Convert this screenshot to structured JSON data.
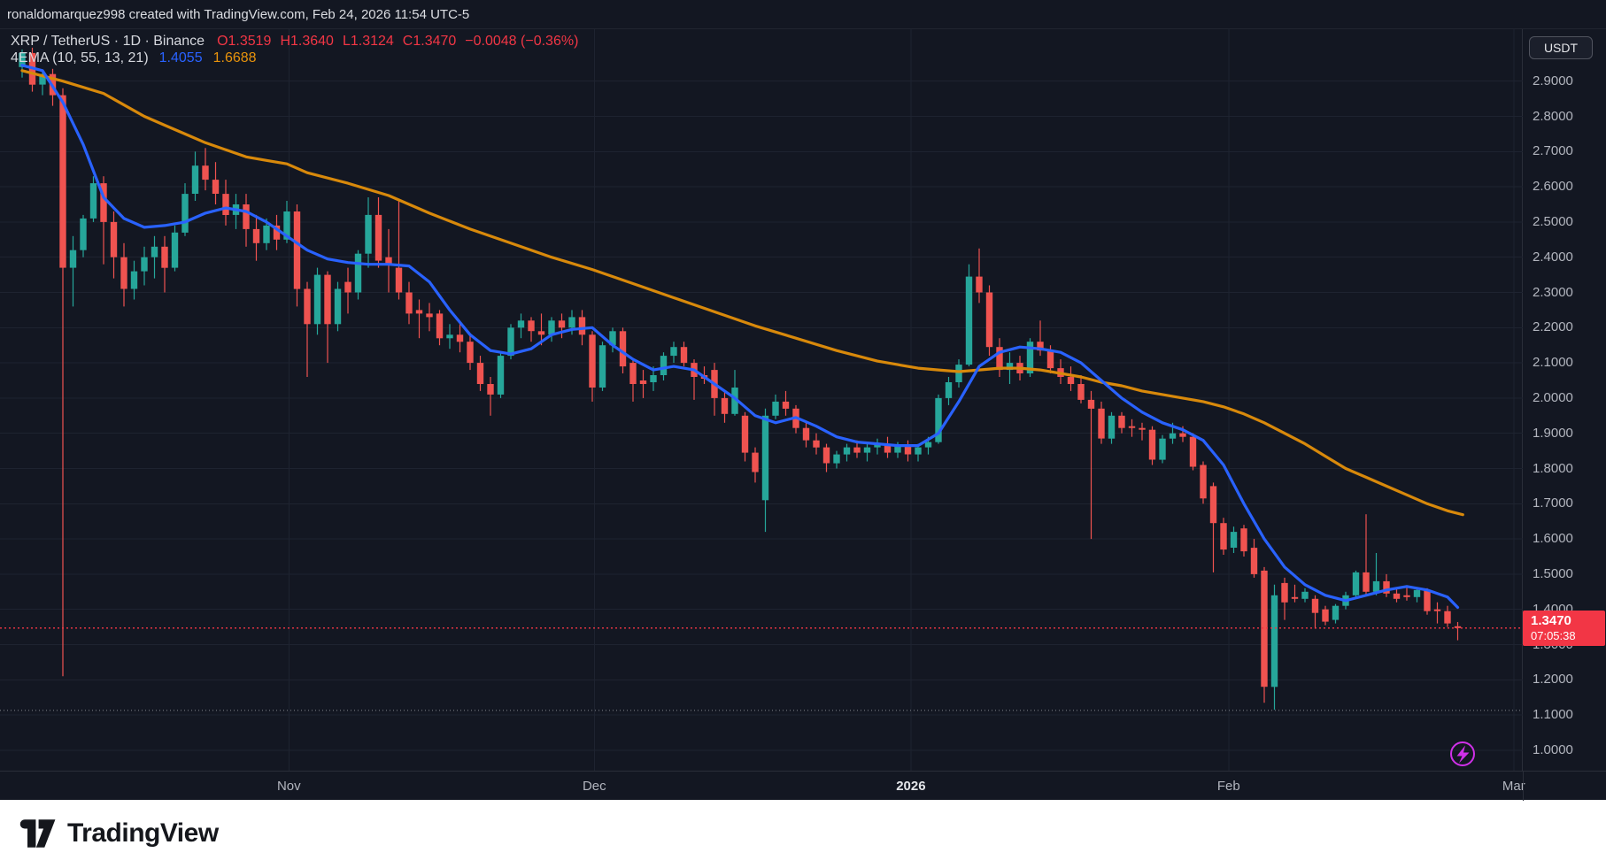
{
  "attribution": {
    "text": "ronaldomarquez998 created with TradingView.com, Feb 24, 2026 11:54 UTC-5"
  },
  "legend": {
    "symbol": "XRP / TetherUS · 1D · Binance",
    "open": "O1.3519",
    "high": "H1.3640",
    "low": "L1.3124",
    "close": "C1.3470",
    "change": "−0.0048 (−0.36%)",
    "indicator_name": "4EMA (10, 55, 13, 21)",
    "ema_fast_value": "1.4055",
    "ema_slow_value": "1.6688"
  },
  "price_axis": {
    "currency": "USDT",
    "last_price": "1.3470",
    "countdown": "07:05:38"
  },
  "footer": {
    "brand": "TradingView"
  },
  "colors": {
    "background": "#131722",
    "grid": "#1e2330",
    "up": "#26a69a",
    "down": "#ef5350",
    "legend_red": "#f23645",
    "ema_fast": "#2962ff",
    "ema_slow": "#d8890b",
    "price_line": "#f23645",
    "level_line": "#85888f",
    "boost_purple": "#cf30e8",
    "axis_text": "#b2b5be"
  },
  "chart_data": {
    "type": "candlestick",
    "title": "XRP / TetherUS · 1D · Binance",
    "exchange": "Binance",
    "timeframe": "1D",
    "ylim": [
      0.94,
      2.965
    ],
    "y_ticks": [
      2.9,
      2.8,
      2.7,
      2.6,
      2.5,
      2.4,
      2.3,
      2.2,
      2.1,
      2.0,
      1.9,
      1.8,
      1.7,
      1.6,
      1.5,
      1.4,
      1.3,
      1.2,
      1.1,
      1.0
    ],
    "months": [
      {
        "label": "Nov",
        "i": 26.2
      },
      {
        "label": "Dec",
        "i": 56.2
      },
      {
        "label": "2026",
        "i": 87.3,
        "bold": true
      },
      {
        "label": "Feb",
        "i": 118.5
      },
      {
        "label": "Mar",
        "i": 146.5
      }
    ],
    "price_line": {
      "value": 1.347
    },
    "level_line": {
      "value": 1.113
    },
    "candles": [
      [
        2.94,
        2.99,
        2.91,
        2.98
      ],
      [
        2.98,
        2.995,
        2.87,
        2.89
      ],
      [
        2.89,
        2.93,
        2.86,
        2.92
      ],
      [
        2.92,
        2.935,
        2.83,
        2.86
      ],
      [
        2.86,
        2.88,
        1.21,
        2.37
      ],
      [
        2.37,
        2.46,
        2.26,
        2.42
      ],
      [
        2.42,
        2.52,
        2.4,
        2.51
      ],
      [
        2.51,
        2.63,
        2.5,
        2.61
      ],
      [
        2.61,
        2.63,
        2.38,
        2.5
      ],
      [
        2.5,
        2.53,
        2.34,
        2.4
      ],
      [
        2.4,
        2.44,
        2.26,
        2.31
      ],
      [
        2.31,
        2.39,
        2.28,
        2.36
      ],
      [
        2.36,
        2.43,
        2.32,
        2.4
      ],
      [
        2.4,
        2.46,
        2.34,
        2.43
      ],
      [
        2.43,
        2.46,
        2.3,
        2.37
      ],
      [
        2.37,
        2.49,
        2.36,
        2.47
      ],
      [
        2.47,
        2.61,
        2.46,
        2.58
      ],
      [
        2.58,
        2.7,
        2.56,
        2.66
      ],
      [
        2.66,
        2.71,
        2.59,
        2.62
      ],
      [
        2.62,
        2.67,
        2.55,
        2.58
      ],
      [
        2.58,
        2.62,
        2.49,
        2.52
      ],
      [
        2.52,
        2.58,
        2.48,
        2.55
      ],
      [
        2.55,
        2.58,
        2.43,
        2.48
      ],
      [
        2.48,
        2.52,
        2.39,
        2.44
      ],
      [
        2.44,
        2.51,
        2.42,
        2.49
      ],
      [
        2.49,
        2.52,
        2.42,
        2.45
      ],
      [
        2.45,
        2.56,
        2.44,
        2.53
      ],
      [
        2.53,
        2.55,
        2.26,
        2.31
      ],
      [
        2.31,
        2.33,
        2.06,
        2.21
      ],
      [
        2.21,
        2.37,
        2.18,
        2.35
      ],
      [
        2.35,
        2.36,
        2.1,
        2.21
      ],
      [
        2.21,
        2.33,
        2.19,
        2.31
      ],
      [
        2.33,
        2.37,
        2.24,
        2.3
      ],
      [
        2.3,
        2.42,
        2.28,
        2.41
      ],
      [
        2.41,
        2.57,
        2.37,
        2.52
      ],
      [
        2.52,
        2.57,
        2.37,
        2.39
      ],
      [
        2.4,
        2.48,
        2.3,
        2.38
      ],
      [
        2.37,
        2.56,
        2.28,
        2.3
      ],
      [
        2.3,
        2.33,
        2.21,
        2.24
      ],
      [
        2.25,
        2.28,
        2.17,
        2.24
      ],
      [
        2.24,
        2.27,
        2.19,
        2.23
      ],
      [
        2.24,
        2.25,
        2.15,
        2.17
      ],
      [
        2.17,
        2.21,
        2.14,
        2.18
      ],
      [
        2.18,
        2.21,
        2.13,
        2.16
      ],
      [
        2.16,
        2.18,
        2.08,
        2.1
      ],
      [
        2.1,
        2.12,
        2.02,
        2.04
      ],
      [
        2.04,
        2.06,
        1.95,
        2.01
      ],
      [
        2.01,
        2.13,
        2.0,
        2.12
      ],
      [
        2.12,
        2.21,
        2.11,
        2.2
      ],
      [
        2.2,
        2.24,
        2.17,
        2.22
      ],
      [
        2.22,
        2.23,
        2.16,
        2.19
      ],
      [
        2.19,
        2.24,
        2.15,
        2.18
      ],
      [
        2.18,
        2.23,
        2.16,
        2.22
      ],
      [
        2.22,
        2.24,
        2.17,
        2.2
      ],
      [
        2.2,
        2.25,
        2.18,
        2.23
      ],
      [
        2.23,
        2.25,
        2.15,
        2.18
      ],
      [
        2.18,
        2.19,
        1.99,
        2.03
      ],
      [
        2.03,
        2.16,
        2.02,
        2.15
      ],
      [
        2.15,
        2.2,
        2.13,
        2.19
      ],
      [
        2.19,
        2.2,
        2.07,
        2.09
      ],
      [
        2.1,
        2.11,
        1.99,
        2.04
      ],
      [
        2.05,
        2.08,
        2.0,
        2.04
      ],
      [
        2.045,
        2.09,
        2.02,
        2.065
      ],
      [
        2.065,
        2.13,
        2.05,
        2.12
      ],
      [
        2.12,
        2.16,
        2.1,
        2.145
      ],
      [
        2.145,
        2.16,
        2.09,
        2.1
      ],
      [
        2.1,
        2.11,
        1.995,
        2.06
      ],
      [
        2.065,
        2.09,
        2.04,
        2.055
      ],
      [
        2.08,
        2.1,
        1.95,
        2.0
      ],
      [
        2.0,
        2.02,
        1.93,
        1.955
      ],
      [
        1.955,
        2.08,
        1.95,
        2.03
      ],
      [
        1.95,
        1.96,
        1.82,
        1.845
      ],
      [
        1.845,
        1.86,
        1.76,
        1.79
      ],
      [
        1.71,
        1.97,
        1.62,
        1.95
      ],
      [
        1.95,
        2.01,
        1.94,
        1.99
      ],
      [
        1.99,
        2.02,
        1.95,
        1.97
      ],
      [
        1.97,
        1.98,
        1.9,
        1.915
      ],
      [
        1.915,
        1.93,
        1.86,
        1.88
      ],
      [
        1.88,
        1.9,
        1.84,
        1.86
      ],
      [
        1.86,
        1.87,
        1.79,
        1.815
      ],
      [
        1.815,
        1.85,
        1.8,
        1.84
      ],
      [
        1.84,
        1.87,
        1.82,
        1.86
      ],
      [
        1.86,
        1.88,
        1.83,
        1.845
      ],
      [
        1.845,
        1.87,
        1.82,
        1.86
      ],
      [
        1.86,
        1.885,
        1.84,
        1.87
      ],
      [
        1.87,
        1.89,
        1.83,
        1.845
      ],
      [
        1.845,
        1.875,
        1.83,
        1.865
      ],
      [
        1.865,
        1.88,
        1.82,
        1.84
      ],
      [
        1.84,
        1.87,
        1.82,
        1.86
      ],
      [
        1.86,
        1.89,
        1.84,
        1.875
      ],
      [
        1.875,
        2.01,
        1.87,
        2.0
      ],
      [
        2.0,
        2.06,
        1.98,
        2.045
      ],
      [
        2.045,
        2.11,
        2.03,
        2.095
      ],
      [
        2.095,
        2.38,
        2.09,
        2.345
      ],
      [
        2.345,
        2.425,
        2.27,
        2.3
      ],
      [
        2.3,
        2.32,
        2.12,
        2.145
      ],
      [
        2.145,
        2.17,
        2.06,
        2.08
      ],
      [
        2.08,
        2.13,
        2.04,
        2.1
      ],
      [
        2.1,
        2.12,
        2.05,
        2.07
      ],
      [
        2.07,
        2.17,
        2.06,
        2.16
      ],
      [
        2.16,
        2.22,
        2.12,
        2.135
      ],
      [
        2.135,
        2.15,
        2.07,
        2.085
      ],
      [
        2.085,
        2.11,
        2.04,
        2.06
      ],
      [
        2.06,
        2.09,
        2.02,
        2.04
      ],
      [
        2.04,
        2.065,
        1.985,
        1.995
      ],
      [
        1.995,
        2.02,
        1.6,
        1.97
      ],
      [
        1.97,
        1.99,
        1.87,
        1.885
      ],
      [
        1.885,
        1.96,
        1.87,
        1.95
      ],
      [
        1.95,
        1.96,
        1.9,
        1.915
      ],
      [
        1.92,
        1.94,
        1.89,
        1.915
      ],
      [
        1.915,
        1.93,
        1.88,
        1.91
      ],
      [
        1.91,
        1.92,
        1.81,
        1.825
      ],
      [
        1.825,
        1.895,
        1.815,
        1.885
      ],
      [
        1.885,
        1.93,
        1.87,
        1.9
      ],
      [
        1.9,
        1.92,
        1.875,
        1.89
      ],
      [
        1.89,
        1.9,
        1.795,
        1.805
      ],
      [
        1.81,
        1.82,
        1.7,
        1.715
      ],
      [
        1.75,
        1.76,
        1.505,
        1.645
      ],
      [
        1.645,
        1.66,
        1.555,
        1.57
      ],
      [
        1.575,
        1.635,
        1.56,
        1.62
      ],
      [
        1.63,
        1.64,
        1.55,
        1.565
      ],
      [
        1.575,
        1.6,
        1.49,
        1.5
      ],
      [
        1.51,
        1.52,
        1.135,
        1.18
      ],
      [
        1.18,
        1.47,
        1.115,
        1.44
      ],
      [
        1.475,
        1.49,
        1.37,
        1.42
      ],
      [
        1.435,
        1.47,
        1.42,
        1.43
      ],
      [
        1.43,
        1.46,
        1.42,
        1.45
      ],
      [
        1.43,
        1.44,
        1.345,
        1.39
      ],
      [
        1.4,
        1.41,
        1.355,
        1.365
      ],
      [
        1.37,
        1.415,
        1.36,
        1.41
      ],
      [
        1.41,
        1.45,
        1.4,
        1.44
      ],
      [
        1.44,
        1.51,
        1.43,
        1.505
      ],
      [
        1.505,
        1.67,
        1.44,
        1.45
      ],
      [
        1.45,
        1.56,
        1.44,
        1.48
      ],
      [
        1.48,
        1.5,
        1.435,
        1.445
      ],
      [
        1.445,
        1.46,
        1.42,
        1.43
      ],
      [
        1.44,
        1.465,
        1.425,
        1.435
      ],
      [
        1.435,
        1.46,
        1.42,
        1.455
      ],
      [
        1.455,
        1.46,
        1.385,
        1.395
      ],
      [
        1.4,
        1.42,
        1.36,
        1.395
      ],
      [
        1.395,
        1.41,
        1.35,
        1.36
      ],
      [
        1.3519,
        1.364,
        1.3124,
        1.347
      ]
    ],
    "series": [
      {
        "name": "EMA slow (55)",
        "legend_value": 1.6688,
        "color": "#d8890b",
        "points": [
          [
            0,
            2.93
          ],
          [
            4,
            2.9
          ],
          [
            8,
            2.865
          ],
          [
            12,
            2.8
          ],
          [
            14,
            2.775
          ],
          [
            16,
            2.75
          ],
          [
            18,
            2.725
          ],
          [
            20,
            2.705
          ],
          [
            22,
            2.685
          ],
          [
            24,
            2.675
          ],
          [
            26,
            2.665
          ],
          [
            28,
            2.64
          ],
          [
            32,
            2.61
          ],
          [
            36,
            2.575
          ],
          [
            40,
            2.525
          ],
          [
            44,
            2.48
          ],
          [
            48,
            2.44
          ],
          [
            52,
            2.4
          ],
          [
            56,
            2.365
          ],
          [
            60,
            2.325
          ],
          [
            64,
            2.285
          ],
          [
            68,
            2.245
          ],
          [
            72,
            2.205
          ],
          [
            76,
            2.17
          ],
          [
            80,
            2.135
          ],
          [
            84,
            2.105
          ],
          [
            86,
            2.095
          ],
          [
            88,
            2.085
          ],
          [
            90,
            2.08
          ],
          [
            92,
            2.075
          ],
          [
            94,
            2.08
          ],
          [
            96,
            2.085
          ],
          [
            98,
            2.085
          ],
          [
            100,
            2.08
          ],
          [
            102,
            2.07
          ],
          [
            104,
            2.06
          ],
          [
            106,
            2.045
          ],
          [
            108,
            2.035
          ],
          [
            110,
            2.02
          ],
          [
            112,
            2.01
          ],
          [
            114,
            2.0
          ],
          [
            116,
            1.99
          ],
          [
            118,
            1.975
          ],
          [
            120,
            1.955
          ],
          [
            122,
            1.93
          ],
          [
            124,
            1.9
          ],
          [
            126,
            1.87
          ],
          [
            128,
            1.835
          ],
          [
            130,
            1.8
          ],
          [
            132,
            1.775
          ],
          [
            134,
            1.75
          ],
          [
            136,
            1.725
          ],
          [
            138,
            1.7
          ],
          [
            140,
            1.68
          ],
          [
            141.5,
            1.6688
          ]
        ]
      },
      {
        "name": "EMA fast (10)",
        "legend_value": 1.4055,
        "color": "#2962ff",
        "points": [
          [
            0,
            2.945
          ],
          [
            2,
            2.93
          ],
          [
            4,
            2.84
          ],
          [
            6,
            2.72
          ],
          [
            8,
            2.57
          ],
          [
            10,
            2.51
          ],
          [
            12,
            2.485
          ],
          [
            14,
            2.49
          ],
          [
            16,
            2.5
          ],
          [
            18,
            2.525
          ],
          [
            20,
            2.54
          ],
          [
            22,
            2.53
          ],
          [
            24,
            2.5
          ],
          [
            26,
            2.46
          ],
          [
            28,
            2.42
          ],
          [
            30,
            2.395
          ],
          [
            32,
            2.385
          ],
          [
            34,
            2.38
          ],
          [
            36,
            2.38
          ],
          [
            38,
            2.375
          ],
          [
            40,
            2.33
          ],
          [
            42,
            2.25
          ],
          [
            44,
            2.18
          ],
          [
            46,
            2.135
          ],
          [
            48,
            2.125
          ],
          [
            50,
            2.14
          ],
          [
            52,
            2.18
          ],
          [
            54,
            2.195
          ],
          [
            56,
            2.2
          ],
          [
            58,
            2.15
          ],
          [
            60,
            2.11
          ],
          [
            62,
            2.08
          ],
          [
            64,
            2.09
          ],
          [
            66,
            2.08
          ],
          [
            68,
            2.04
          ],
          [
            70,
            2.0
          ],
          [
            72,
            1.95
          ],
          [
            74,
            1.93
          ],
          [
            76,
            1.945
          ],
          [
            78,
            1.92
          ],
          [
            80,
            1.89
          ],
          [
            82,
            1.875
          ],
          [
            84,
            1.87
          ],
          [
            86,
            1.865
          ],
          [
            88,
            1.865
          ],
          [
            90,
            1.9
          ],
          [
            92,
            1.99
          ],
          [
            94,
            2.09
          ],
          [
            96,
            2.13
          ],
          [
            98,
            2.145
          ],
          [
            100,
            2.14
          ],
          [
            102,
            2.13
          ],
          [
            104,
            2.1
          ],
          [
            106,
            2.05
          ],
          [
            108,
            2.0
          ],
          [
            110,
            1.96
          ],
          [
            112,
            1.93
          ],
          [
            114,
            1.91
          ],
          [
            116,
            1.88
          ],
          [
            118,
            1.81
          ],
          [
            120,
            1.7
          ],
          [
            122,
            1.6
          ],
          [
            124,
            1.52
          ],
          [
            126,
            1.47
          ],
          [
            128,
            1.44
          ],
          [
            130,
            1.425
          ],
          [
            132,
            1.44
          ],
          [
            134,
            1.455
          ],
          [
            136,
            1.465
          ],
          [
            138,
            1.455
          ],
          [
            140,
            1.435
          ],
          [
            141,
            1.4055
          ]
        ]
      }
    ]
  }
}
